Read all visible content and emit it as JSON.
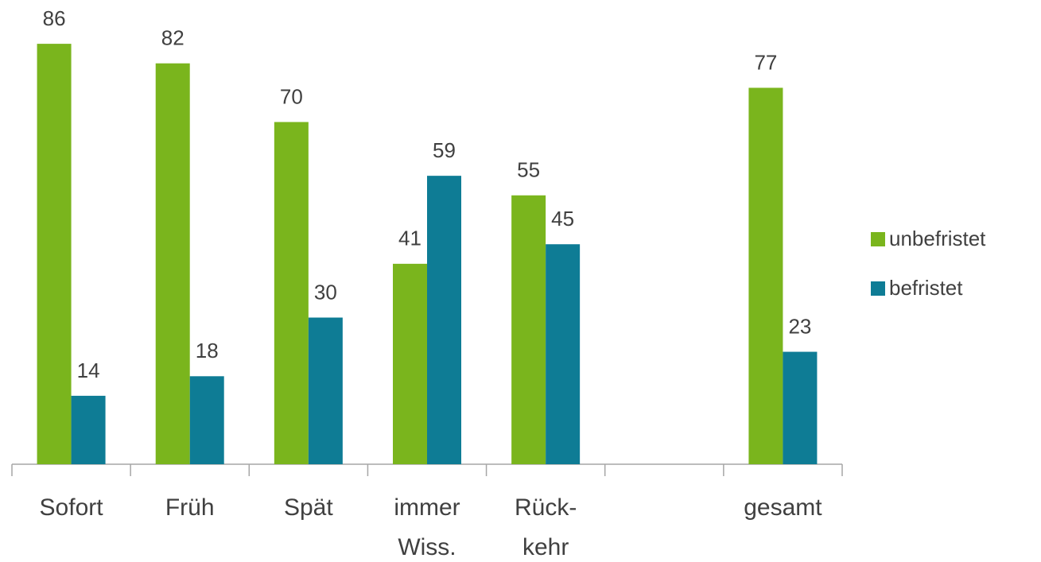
{
  "chart_data": {
    "type": "bar",
    "categories": [
      "Sofort",
      "Früh",
      "Spät",
      "immer\nWiss.",
      "Rück-\nkehr",
      null,
      "gesamt"
    ],
    "series": [
      {
        "name": "unbefristet",
        "color": "#7ab51d",
        "values": [
          86,
          82,
          70,
          41,
          55,
          null,
          77
        ]
      },
      {
        "name": "befristet",
        "color": "#0e7c95",
        "values": [
          14,
          18,
          30,
          59,
          45,
          null,
          23
        ]
      }
    ],
    "legend": "right"
  }
}
